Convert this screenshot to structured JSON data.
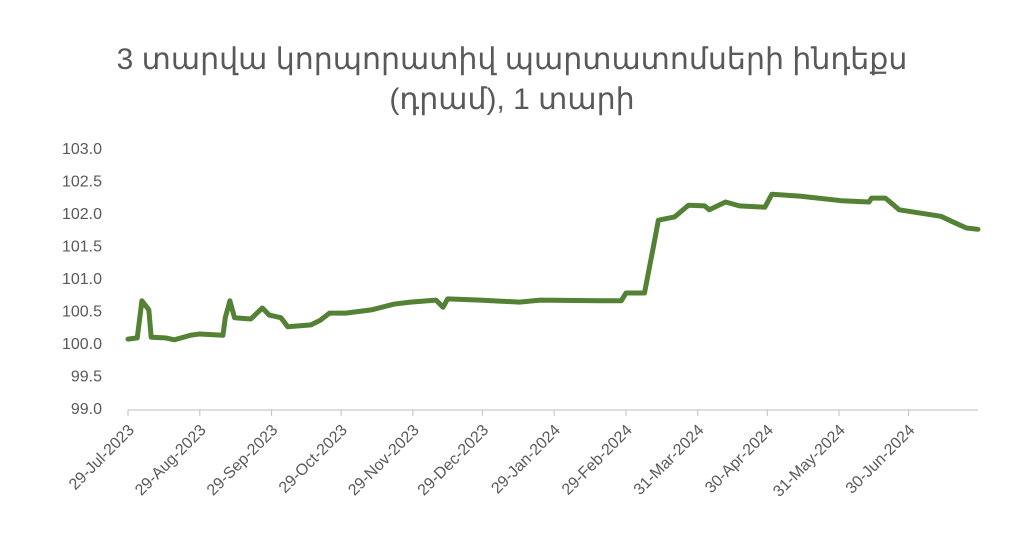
{
  "chart_data": {
    "type": "line",
    "title": "3 տարվա կորպորատիվ պարտատոմսերի ինդեքս (դրամ), 1 տարի",
    "x": [
      "29-Jul-2023",
      "2-Aug-2023",
      "4-Aug-2023",
      "7-Aug-2023",
      "8-Aug-2023",
      "14-Aug-2023",
      "18-Aug-2023",
      "25-Aug-2023",
      "29-Aug-2023",
      "8-Sep-2023",
      "9-Sep-2023",
      "11-Sep-2023",
      "13-Sep-2023",
      "20-Sep-2023",
      "25-Sep-2023",
      "28-Sep-2023",
      "3-Oct-2023",
      "6-Oct-2023",
      "16-Oct-2023",
      "20-Oct-2023",
      "24-Oct-2023",
      "31-Oct-2023",
      "11-Nov-2023",
      "21-Nov-2023",
      "28-Nov-2023",
      "9-Dec-2023",
      "12-Dec-2023",
      "14-Dec-2023",
      "28-Dec-2023",
      "14-Jan-2024",
      "23-Jan-2024",
      "18-Feb-2024",
      "27-Feb-2024",
      "29-Feb-2024",
      "8-Mar-2024",
      "12-Mar-2024",
      "14-Mar-2024",
      "21-Mar-2024",
      "27-Mar-2024",
      "3-Apr-2024",
      "5-Apr-2024",
      "12-Apr-2024",
      "18-Apr-2024",
      "29-Apr-2024",
      "2-May-2024",
      "14-May-2024",
      "1-Jun-2024",
      "13-Jun-2024",
      "14-Jun-2024",
      "20-Jun-2024",
      "26-Jun-2024",
      "14-Jul-2024",
      "20-Jul-2024",
      "25-Jul-2024",
      "30-Jul-2024"
    ],
    "series": [
      {
        "color": "#548235",
        "values": [
          100.09,
          100.11,
          100.68,
          100.54,
          100.12,
          100.11,
          100.08,
          100.15,
          100.17,
          100.15,
          100.42,
          100.68,
          100.42,
          100.4,
          100.57,
          100.46,
          100.42,
          100.28,
          100.31,
          100.38,
          100.49,
          100.49,
          100.54,
          100.63,
          100.66,
          100.69,
          100.58,
          100.71,
          100.69,
          100.66,
          100.69,
          100.68,
          100.68,
          100.8,
          100.8,
          101.54,
          101.92,
          101.97,
          102.15,
          102.14,
          102.08,
          102.2,
          102.14,
          102.12,
          102.32,
          102.29,
          102.22,
          102.2,
          102.26,
          102.26,
          102.08,
          101.98,
          101.88,
          101.8,
          101.78
        ]
      }
    ],
    "xlim": [
      "29-Jul-2023",
      "30-Jul-2024"
    ],
    "xticks": [
      "29-Jul-2023",
      "29-Aug-2023",
      "29-Sep-2023",
      "29-Oct-2023",
      "29-Nov-2023",
      "29-Dec-2023",
      "29-Jan-2024",
      "29-Feb-2024",
      "31-Mar-2024",
      "30-Apr-2024",
      "31-May-2024",
      "30-Jun-2024"
    ],
    "ylim": [
      99,
      103
    ],
    "yticks": [
      {
        "value": 99,
        "label": "99.0"
      },
      {
        "value": 99.5,
        "label": "99.5"
      },
      {
        "value": 100,
        "label": "100.0"
      },
      {
        "value": 100.5,
        "label": "100.5"
      },
      {
        "value": 101,
        "label": "101.0"
      },
      {
        "value": 101.5,
        "label": "101.5"
      },
      {
        "value": 102,
        "label": "102.0"
      },
      {
        "value": 102.5,
        "label": "102.5"
      },
      {
        "value": 103,
        "label": "103.0"
      }
    ],
    "grid": false
  }
}
